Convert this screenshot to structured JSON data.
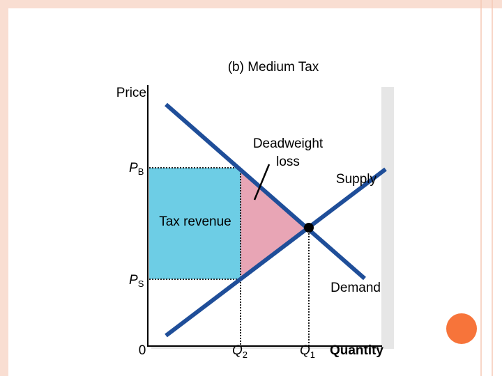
{
  "title": "(b) Medium Tax",
  "y_axis_label": "Price",
  "x_axis_label": "Quantity",
  "origin": "0",
  "buyer_price": {
    "main": "P",
    "sub": "B"
  },
  "seller_price": {
    "main": "P",
    "sub": "S"
  },
  "quantity_tax": {
    "main": "Q",
    "sub": "2"
  },
  "quantity_free": {
    "main": "Q",
    "sub": "1"
  },
  "tax_revenue": "Tax revenue",
  "deadweight_loss": [
    "Deadweight",
    "loss"
  ],
  "supply": "Supply",
  "demand": "Demand"
}
